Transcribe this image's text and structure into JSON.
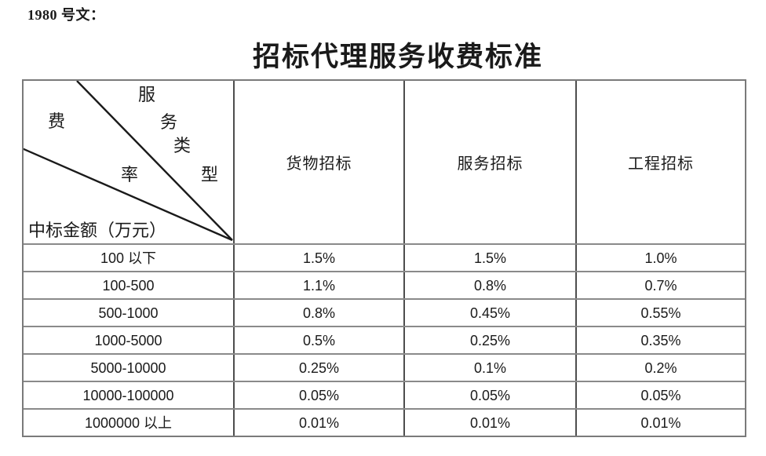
{
  "doc": {
    "ref_label": "1980 号文：",
    "title": "招标代理服务收费标准"
  },
  "table": {
    "corner": {
      "type_label": "服务类型",
      "rate_label": "费率",
      "amount_label": "中标金额（万元）"
    },
    "columns": [
      "货物招标",
      "服务招标",
      "工程招标"
    ],
    "rows": [
      {
        "range": "100 以下",
        "values": [
          "1.5%",
          "1.5%",
          "1.0%"
        ]
      },
      {
        "range": "100-500",
        "values": [
          "1.1%",
          "0.8%",
          "0.7%"
        ]
      },
      {
        "range": "500-1000",
        "values": [
          "0.8%",
          "0.45%",
          "0.55%"
        ]
      },
      {
        "range": "1000-5000",
        "values": [
          "0.5%",
          "0.25%",
          "0.35%"
        ]
      },
      {
        "range": "5000-10000",
        "values": [
          "0.25%",
          "0.1%",
          "0.2%"
        ]
      },
      {
        "range": "10000-100000",
        "values": [
          "0.05%",
          "0.05%",
          "0.05%"
        ]
      },
      {
        "range": "1000000 以上",
        "values": [
          "0.01%",
          "0.01%",
          "0.01%"
        ]
      }
    ]
  }
}
